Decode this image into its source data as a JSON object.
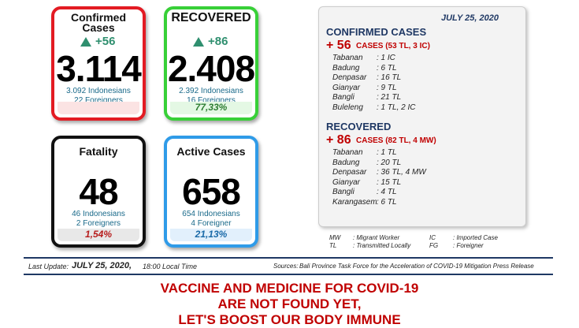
{
  "cards": [
    {
      "title": "Confirmed Cases",
      "delta": "+56",
      "value": "3.114",
      "lines": [
        "3.092 Indonesians",
        "22 Foreigners"
      ]
    },
    {
      "title": "RECOVERED",
      "delta": "+86",
      "value": "2.408",
      "lines": [
        "2.392 Indonesians",
        "16 Foreigners"
      ],
      "percent": "77,33%"
    },
    {
      "title": "Fatality",
      "value": "48",
      "lines": [
        "46 Indonesians",
        "2 Foreigners"
      ],
      "percent": "1,54%"
    },
    {
      "title": "Active Cases",
      "value": "658",
      "lines": [
        "654 Indonesians",
        "4 Foreigner"
      ],
      "percent": "21,13%"
    }
  ],
  "panel": {
    "date": "JULY 25, 2020",
    "sections": [
      {
        "heading": "CONFIRMED CASES",
        "plus": "+ 56",
        "summary": "CASES (53 TL, 3 IC)",
        "rows": [
          [
            "Tabanan",
            ": 1 IC"
          ],
          [
            "Badung",
            ": 6 TL"
          ],
          [
            "Denpasar",
            ": 16 TL"
          ],
          [
            "Gianyar",
            ": 9 TL"
          ],
          [
            "Bangli",
            ": 21 TL"
          ],
          [
            "Buleleng",
            ": 1 TL, 2 IC"
          ]
        ]
      },
      {
        "heading": "RECOVERED",
        "plus": "+ 86",
        "summary": "CASES (82 TL, 4 MW)",
        "rows": [
          [
            "Tabanan",
            ": 1 TL"
          ],
          [
            "Badung",
            ": 20 TL"
          ],
          [
            "Denpasar",
            ": 36 TL, 4 MW"
          ],
          [
            "Gianyar",
            ": 15 TL"
          ],
          [
            "Bangli",
            ": 4 TL"
          ],
          [
            "Karangasem",
            ": 6 TL"
          ]
        ]
      }
    ]
  },
  "legend": [
    [
      "MW",
      ": Migrant Worker"
    ],
    [
      "IC",
      ": Imported Case"
    ],
    [
      "TL",
      ": Transmitted Locally"
    ],
    [
      "FG",
      ": Foreigner"
    ]
  ],
  "footer": {
    "label": "Last Update:",
    "date": "JULY 25, 2020,",
    "time": "18:00 Local Time",
    "source_label": "Sources:",
    "source": "Bali Province Task Force for the Acceleration of COVID-19 Mitigation Press Release"
  },
  "banner": [
    "VACCINE AND MEDICINE FOR COVID-19",
    "ARE NOT FOUND YET,",
    "LET'S BOOST OUR BODY IMMUNE"
  ]
}
